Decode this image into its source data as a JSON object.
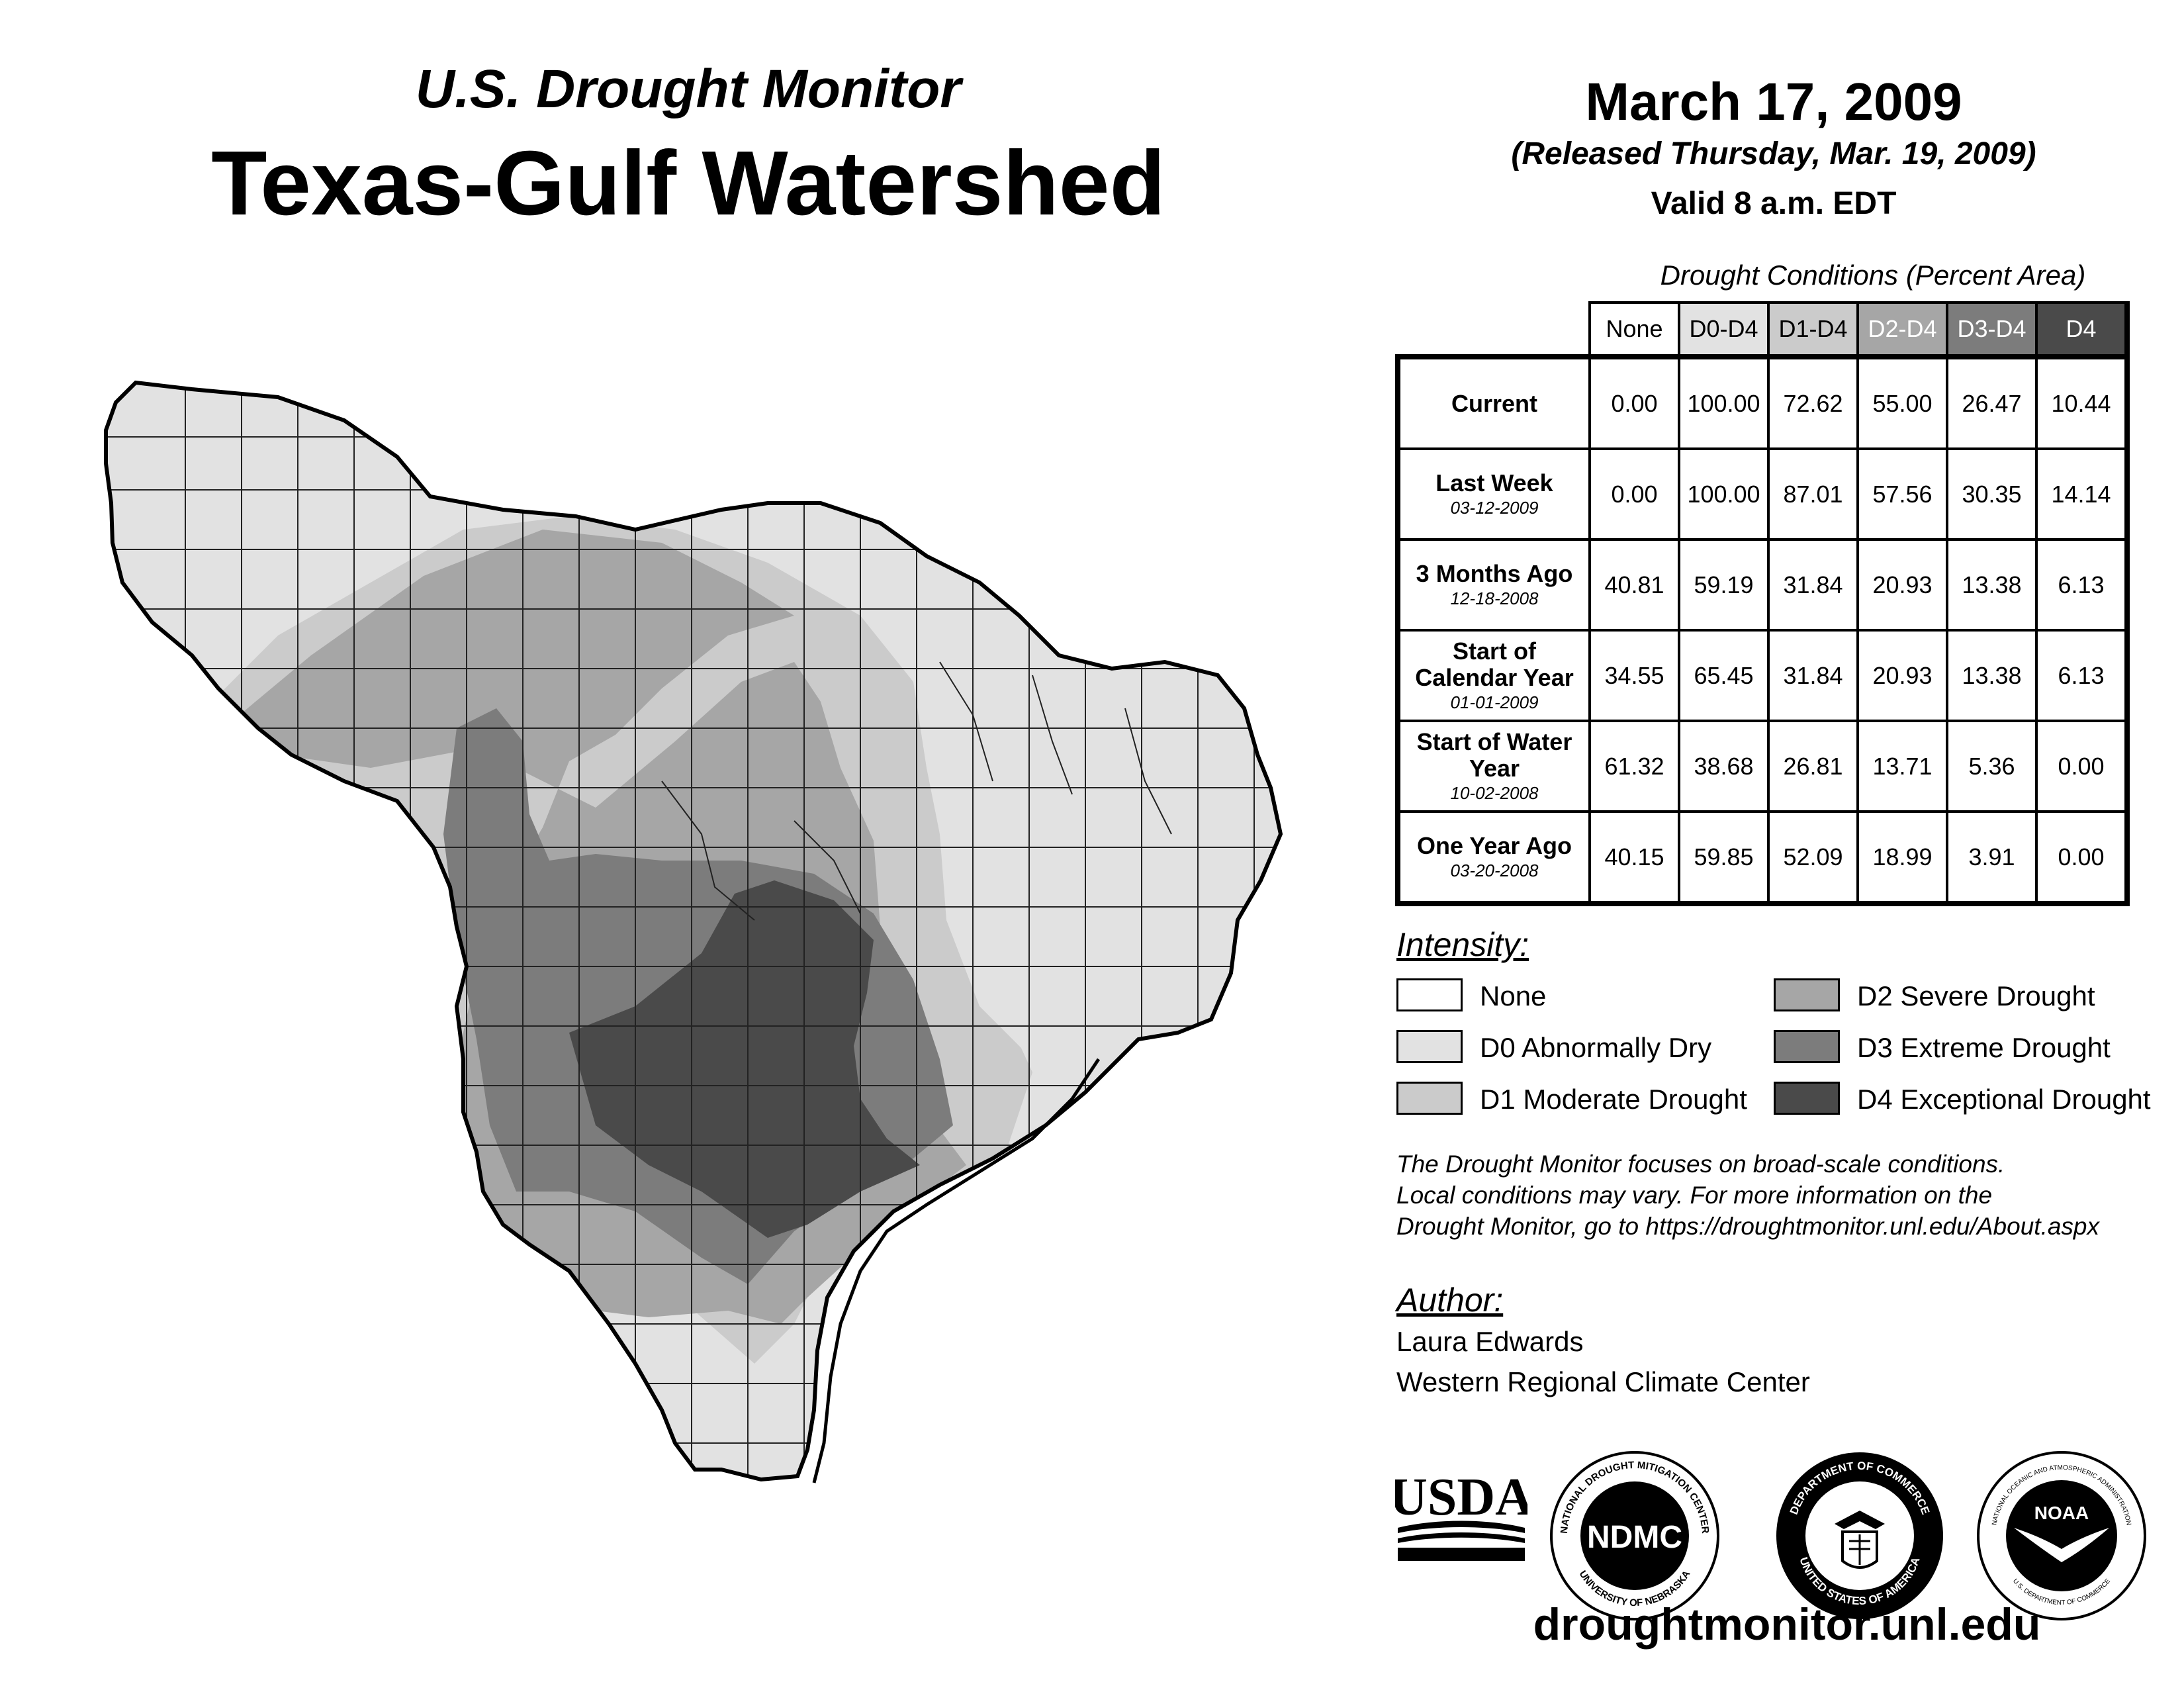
{
  "header": {
    "subtitle": "U.S. Drought Monitor",
    "title": "Texas-Gulf Watershed"
  },
  "date_block": {
    "date": "March 17, 2009",
    "released": "(Released Thursday, Mar. 19, 2009)",
    "valid": "Valid 8 a.m. EDT"
  },
  "table": {
    "title": "Drought Conditions (Percent Area)",
    "columns": [
      "None",
      "D0-D4",
      "D1-D4",
      "D2-D4",
      "D3-D4",
      "D4"
    ],
    "rows": [
      {
        "label": "Current",
        "date": "",
        "values": [
          "0.00",
          "100.00",
          "72.62",
          "55.00",
          "26.47",
          "10.44"
        ]
      },
      {
        "label": "Last Week",
        "date": "03-12-2009",
        "values": [
          "0.00",
          "100.00",
          "87.01",
          "57.56",
          "30.35",
          "14.14"
        ]
      },
      {
        "label": "3 Months Ago",
        "date": "12-18-2008",
        "values": [
          "40.81",
          "59.19",
          "31.84",
          "20.93",
          "13.38",
          "6.13"
        ]
      },
      {
        "label": "Start of Calendar Year",
        "date": "01-01-2009",
        "values": [
          "34.55",
          "65.45",
          "31.84",
          "20.93",
          "13.38",
          "6.13"
        ]
      },
      {
        "label": "Start of Water Year",
        "date": "10-02-2008",
        "values": [
          "61.32",
          "38.68",
          "26.81",
          "13.71",
          "5.36",
          "0.00"
        ]
      },
      {
        "label": "One Year Ago",
        "date": "03-20-2008",
        "values": [
          "40.15",
          "59.85",
          "52.09",
          "18.99",
          "3.91",
          "0.00"
        ]
      }
    ]
  },
  "legend": {
    "title": "Intensity:",
    "items": [
      {
        "label": "None",
        "color": "#ffffff"
      },
      {
        "label": "D0 Abnormally Dry",
        "color": "#e2e2e2"
      },
      {
        "label": "D1 Moderate Drought",
        "color": "#cbcbcb"
      },
      {
        "label": "D2 Severe Drought",
        "color": "#a6a6a6"
      },
      {
        "label": "D3 Extreme Drought",
        "color": "#7c7c7c"
      },
      {
        "label": "D4 Exceptional Drought",
        "color": "#4a4a4a"
      }
    ]
  },
  "note": {
    "line1": "The Drought Monitor focuses on broad-scale conditions.",
    "line2": "Local conditions may vary. For more information on the",
    "line3": "Drought Monitor, go to https://droughtmonitor.unl.edu/About.aspx"
  },
  "author": {
    "title": "Author:",
    "name": "Laura Edwards",
    "org": "Western Regional Climate Center"
  },
  "logos": {
    "usda": "USDA",
    "ndmc": "NDMC",
    "ndmc_ring_top": "NATIONAL DROUGHT MITIGATION CENTER",
    "ndmc_ring_bottom": "UNIVERSITY OF NEBRASKA",
    "doc_ring_top": "DEPARTMENT OF COMMERCE",
    "doc_ring_bottom": "UNITED STATES OF AMERICA",
    "noaa": "NOAA",
    "noaa_ring_top": "NATIONAL OCEANIC AND ATMOSPHERIC ADMINISTRATION",
    "noaa_ring_bottom": "U.S. DEPARTMENT OF COMMERCE"
  },
  "footer": {
    "url": "droughtmonitor.unl.edu"
  },
  "map": {
    "region": "Texas-Gulf Watershed",
    "colors": {
      "none": "#ffffff",
      "d0": "#e2e2e2",
      "d1": "#cbcbcb",
      "d2": "#a6a6a6",
      "d3": "#7c7c7c",
      "d4": "#4a4a4a"
    }
  }
}
